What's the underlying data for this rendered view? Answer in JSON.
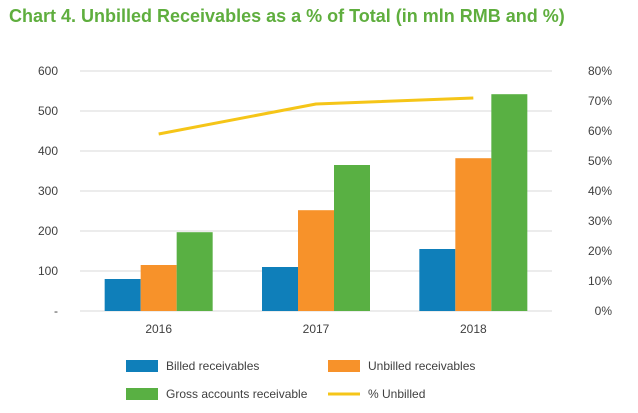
{
  "colors": {
    "title": "#5fae3e",
    "billed": "#0f7fba",
    "unbilled": "#f7922a",
    "gross": "#59b043",
    "pct": "#f5c518",
    "grid": "#d9d9d9",
    "text": "#404040"
  },
  "chart_data": {
    "type": "bar",
    "title": "Chart 4. Unbilled Receivables as a % of Total (in mln RMB and %)",
    "categories": [
      "2016",
      "2017",
      "2018"
    ],
    "series": [
      {
        "name": "Billed receivables",
        "type": "bar",
        "axis": "left",
        "values": [
          80,
          110,
          155
        ]
      },
      {
        "name": "Unbilled receivables",
        "type": "bar",
        "axis": "left",
        "values": [
          115,
          252,
          382
        ]
      },
      {
        "name": "Gross accounts receivable",
        "type": "bar",
        "axis": "left",
        "values": [
          197,
          365,
          542
        ]
      },
      {
        "name": "% Unbilled",
        "type": "line",
        "axis": "right",
        "values": [
          0.59,
          0.69,
          0.71
        ]
      }
    ],
    "ylim": [
      0,
      600
    ],
    "y2lim": [
      0,
      0.8
    ],
    "yticks": [
      "-",
      "100",
      "200",
      "300",
      "400",
      "500",
      "600"
    ],
    "y2ticks": [
      "0%",
      "10%",
      "20%",
      "30%",
      "40%",
      "50%",
      "60%",
      "70%",
      "80%"
    ],
    "grid": true,
    "legend_position": "bottom"
  }
}
